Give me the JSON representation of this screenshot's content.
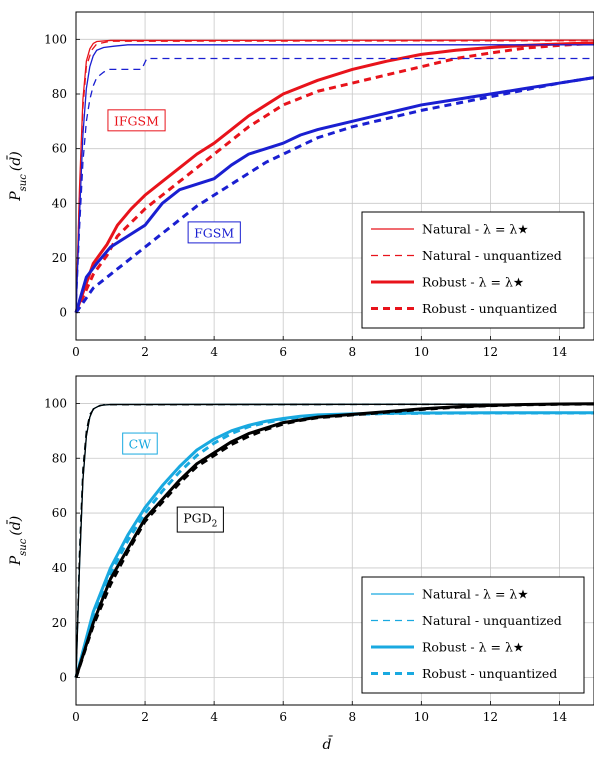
{
  "chart_data": [
    {
      "type": "line",
      "xlim": [
        0,
        15
      ],
      "ylim": [
        -10,
        110
      ],
      "xticks": [
        "0",
        "2",
        "4",
        "6",
        "8",
        "10",
        "12",
        "14"
      ],
      "yticks": [
        "0",
        "20",
        "40",
        "60",
        "80",
        "100"
      ],
      "ylabel": "P",
      "ylabel_sub": "suc",
      "ylabel_arg": "(d̄)",
      "grid": true,
      "legend_position": "bottom-right",
      "legend": [
        "Natural - λ = λ★",
        "Natural - unquantized",
        "Robust - λ = λ★",
        "Robust - unquantized"
      ],
      "annotations": [
        {
          "text": "IFGSM",
          "x": 1.75,
          "y": 70,
          "color": "#e8131b"
        },
        {
          "text": "FGSM",
          "x": 4.0,
          "y": 29,
          "color": "#1a1fd1"
        }
      ],
      "series": [
        {
          "group": "IFGSM",
          "style": "Natural - λ = λ★",
          "color": "#e8131b",
          "x": [
            0,
            0.1,
            0.2,
            0.3,
            0.4,
            0.5,
            0.6,
            1.0,
            15
          ],
          "y": [
            0,
            45,
            78,
            92,
            96.5,
            98.5,
            99.2,
            99.6,
            99.7
          ]
        },
        {
          "group": "IFGSM",
          "style": "Natural - unquantized",
          "color": "#e8131b",
          "x": [
            0,
            0.1,
            0.2,
            0.3,
            0.45,
            0.6,
            1.0,
            15
          ],
          "y": [
            0,
            42,
            75,
            90,
            96,
            98.3,
            99.3,
            99.5
          ]
        },
        {
          "group": "IFGSM",
          "style": "Robust - λ = λ★",
          "color": "#e8131b",
          "x": [
            0,
            0.5,
            0.9,
            1.2,
            1.6,
            2.0,
            2.5,
            3.0,
            3.5,
            4.0,
            4.5,
            5.0,
            5.5,
            6.0,
            7.0,
            8.0,
            9.0,
            10.0,
            11.0,
            12.0,
            13.0,
            14.0,
            15.0
          ],
          "y": [
            0,
            18,
            25,
            32,
            38,
            43,
            48,
            53,
            58,
            62,
            67,
            72,
            76,
            80,
            85,
            89,
            92,
            94.5,
            96,
            97,
            97.8,
            98.3,
            98.7
          ]
        },
        {
          "group": "IFGSM",
          "style": "Robust - unquantized",
          "color": "#e8131b",
          "x": [
            0,
            0.5,
            0.9,
            1.2,
            1.6,
            2.0,
            2.5,
            3.0,
            3.5,
            4.0,
            4.5,
            5.0,
            5.5,
            6.0,
            7.0,
            8.0,
            9.0,
            10.0,
            11.0,
            12.0,
            13.0,
            14.0,
            15.0
          ],
          "y": [
            0,
            14,
            21,
            28,
            33,
            38,
            43,
            48,
            53,
            58,
            63,
            68,
            72,
            76,
            81,
            84,
            87,
            90,
            93,
            95,
            96.8,
            97.8,
            98.5
          ]
        },
        {
          "group": "FGSM",
          "style": "Natural - λ = λ★",
          "color": "#1a1fd1",
          "x": [
            0,
            0.1,
            0.2,
            0.3,
            0.4,
            0.5,
            0.6,
            0.8,
            1.1,
            1.5,
            15
          ],
          "y": [
            0,
            35,
            65,
            82,
            90,
            94,
            96,
            97,
            97.5,
            98,
            98
          ]
        },
        {
          "group": "FGSM",
          "style": "Natural - unquantized",
          "color": "#1a1fd1",
          "x": [
            0,
            0.1,
            0.2,
            0.3,
            0.4,
            0.5,
            0.6,
            0.8,
            0.95,
            1.9,
            2.05,
            15
          ],
          "y": [
            0,
            30,
            55,
            70,
            78,
            83,
            86,
            88,
            89,
            89,
            93,
            93
          ]
        },
        {
          "group": "FGSM",
          "style": "Robust - λ = λ★",
          "color": "#1a1fd1",
          "x": [
            0,
            0.3,
            0.6,
            1.0,
            1.5,
            2.0,
            2.5,
            3.0,
            3.5,
            4.0,
            4.5,
            5.0,
            5.5,
            6.0,
            6.5,
            7.0,
            8.0,
            9.0,
            10.0,
            11.0,
            12.0,
            13.0,
            14.0,
            15.0
          ],
          "y": [
            0,
            13,
            18,
            24,
            28,
            32,
            40,
            45,
            47,
            49,
            54,
            58,
            60,
            62,
            65,
            67,
            70,
            73,
            76,
            78,
            80,
            82,
            84,
            86
          ]
        },
        {
          "group": "FGSM",
          "style": "Robust - unquantized",
          "color": "#1a1fd1",
          "x": [
            0,
            0.5,
            1.0,
            1.5,
            2.0,
            2.5,
            3.0,
            3.5,
            4.0,
            4.5,
            5.0,
            5.5,
            6.0,
            6.5,
            7.0,
            8.0,
            9.0,
            10.0,
            11.0,
            12.0,
            13.0,
            14.0,
            15.0
          ],
          "y": [
            0,
            9,
            14,
            19,
            24,
            29,
            34,
            39,
            43,
            47,
            51,
            55,
            58,
            61,
            64,
            68,
            71,
            74,
            76.5,
            79,
            81.5,
            84,
            86
          ]
        }
      ]
    },
    {
      "type": "line",
      "xlim": [
        0,
        15
      ],
      "ylim": [
        -10,
        110
      ],
      "xticks": [
        "0",
        "2",
        "4",
        "6",
        "8",
        "10",
        "12",
        "14"
      ],
      "yticks": [
        "0",
        "20",
        "40",
        "60",
        "80",
        "100"
      ],
      "xlabel": "d̄",
      "ylabel": "P",
      "ylabel_sub": "suc",
      "ylabel_arg": "(d̄)",
      "grid": true,
      "legend_position": "bottom-right",
      "legend": [
        "Natural - λ = λ★",
        "Natural - unquantized",
        "Robust - λ = λ★",
        "Robust - unquantized"
      ],
      "annotations": [
        {
          "text": "CW",
          "x": 1.85,
          "y": 85,
          "color": "#19a9e0"
        },
        {
          "text": "PGD",
          "sub": "2",
          "x": 3.6,
          "y": 58,
          "color": "#000000"
        }
      ],
      "series": [
        {
          "group": "CW",
          "style": "Natural - λ = λ★",
          "color": "#19a9e0",
          "x": [
            0,
            0.1,
            0.2,
            0.3,
            0.4,
            0.5,
            0.7,
            1.0,
            15
          ],
          "y": [
            0,
            40,
            72,
            88,
            95,
            98,
            99.3,
            99.6,
            99.7
          ]
        },
        {
          "group": "CW",
          "style": "Natural - unquantized",
          "color": "#19a9e0",
          "x": [
            0,
            0.1,
            0.2,
            0.3,
            0.4,
            0.55,
            0.8,
            15
          ],
          "y": [
            0,
            45,
            76,
            90,
            96,
            98.6,
            99.5,
            99.7
          ]
        },
        {
          "group": "CW",
          "style": "Robust - λ = λ★",
          "color": "#19a9e0",
          "x": [
            0,
            0.5,
            1.0,
            1.5,
            2.0,
            2.5,
            3.0,
            3.5,
            4.0,
            4.5,
            5.0,
            5.5,
            6.0,
            6.5,
            7.0,
            8.0,
            9.0,
            10.0,
            12.0,
            15.0
          ],
          "y": [
            0,
            24,
            40,
            52,
            62,
            70,
            77,
            83,
            87,
            90,
            92,
            93.5,
            94.5,
            95.3,
            95.8,
            96.2,
            96.4,
            96.5,
            96.6,
            96.6
          ]
        },
        {
          "group": "CW",
          "style": "Robust - unquantized",
          "color": "#19a9e0",
          "x": [
            0,
            0.5,
            1.0,
            1.5,
            2.0,
            2.5,
            3.0,
            3.5,
            4.0,
            4.5,
            5.0,
            5.5,
            6.0,
            6.5,
            7.0,
            8.0,
            9.0,
            10.0,
            12.0,
            15.0
          ],
          "y": [
            0,
            22,
            38,
            50,
            60,
            68,
            75,
            81,
            85.5,
            89,
            91.5,
            93,
            94.2,
            95,
            95.6,
            96,
            96.3,
            96.4,
            96.5,
            96.5
          ]
        },
        {
          "group": "PGD2",
          "style": "Natural - λ = λ★",
          "color": "#000000",
          "x": [
            0,
            0.1,
            0.2,
            0.3,
            0.4,
            0.5,
            0.7,
            1.0,
            15
          ],
          "y": [
            0,
            40,
            72,
            88,
            95,
            98,
            99.3,
            99.6,
            99.7
          ]
        },
        {
          "group": "PGD2",
          "style": "Natural - unquantized",
          "color": "#000000",
          "x": [
            0,
            0.1,
            0.2,
            0.3,
            0.4,
            0.55,
            0.8,
            15
          ],
          "y": [
            0,
            45,
            76,
            90,
            96,
            98.6,
            99.5,
            99.7
          ]
        },
        {
          "group": "PGD2",
          "style": "Robust - λ = λ★",
          "color": "#000000",
          "x": [
            0,
            0.5,
            1.0,
            1.5,
            2.0,
            2.5,
            3.0,
            3.5,
            4.0,
            4.5,
            5.0,
            5.5,
            6.0,
            6.5,
            7.0,
            8.0,
            9.0,
            10.0,
            11.0,
            12.0,
            13.0,
            14.0,
            15.0
          ],
          "y": [
            0,
            20,
            36,
            47,
            58,
            65,
            72,
            78,
            82,
            86,
            89,
            91,
            93,
            94,
            95,
            96,
            97,
            98,
            98.8,
            99.3,
            99.6,
            99.8,
            99.9
          ]
        },
        {
          "group": "PGD2",
          "style": "Robust - unquantized",
          "color": "#000000",
          "x": [
            0,
            0.5,
            1.0,
            1.5,
            2.0,
            2.5,
            3.0,
            3.5,
            4.0,
            4.5,
            5.0,
            5.5,
            6.0,
            6.5,
            7.0,
            8.0,
            9.0,
            10.0,
            11.0,
            12.0,
            13.0,
            14.0,
            15.0
          ],
          "y": [
            0,
            19,
            34,
            46,
            57,
            64,
            71,
            77,
            81,
            85,
            88,
            90.5,
            92.5,
            93.8,
            94.8,
            95.8,
            96.8,
            97.8,
            98.6,
            99.2,
            99.5,
            99.7,
            99.8
          ]
        }
      ]
    }
  ]
}
